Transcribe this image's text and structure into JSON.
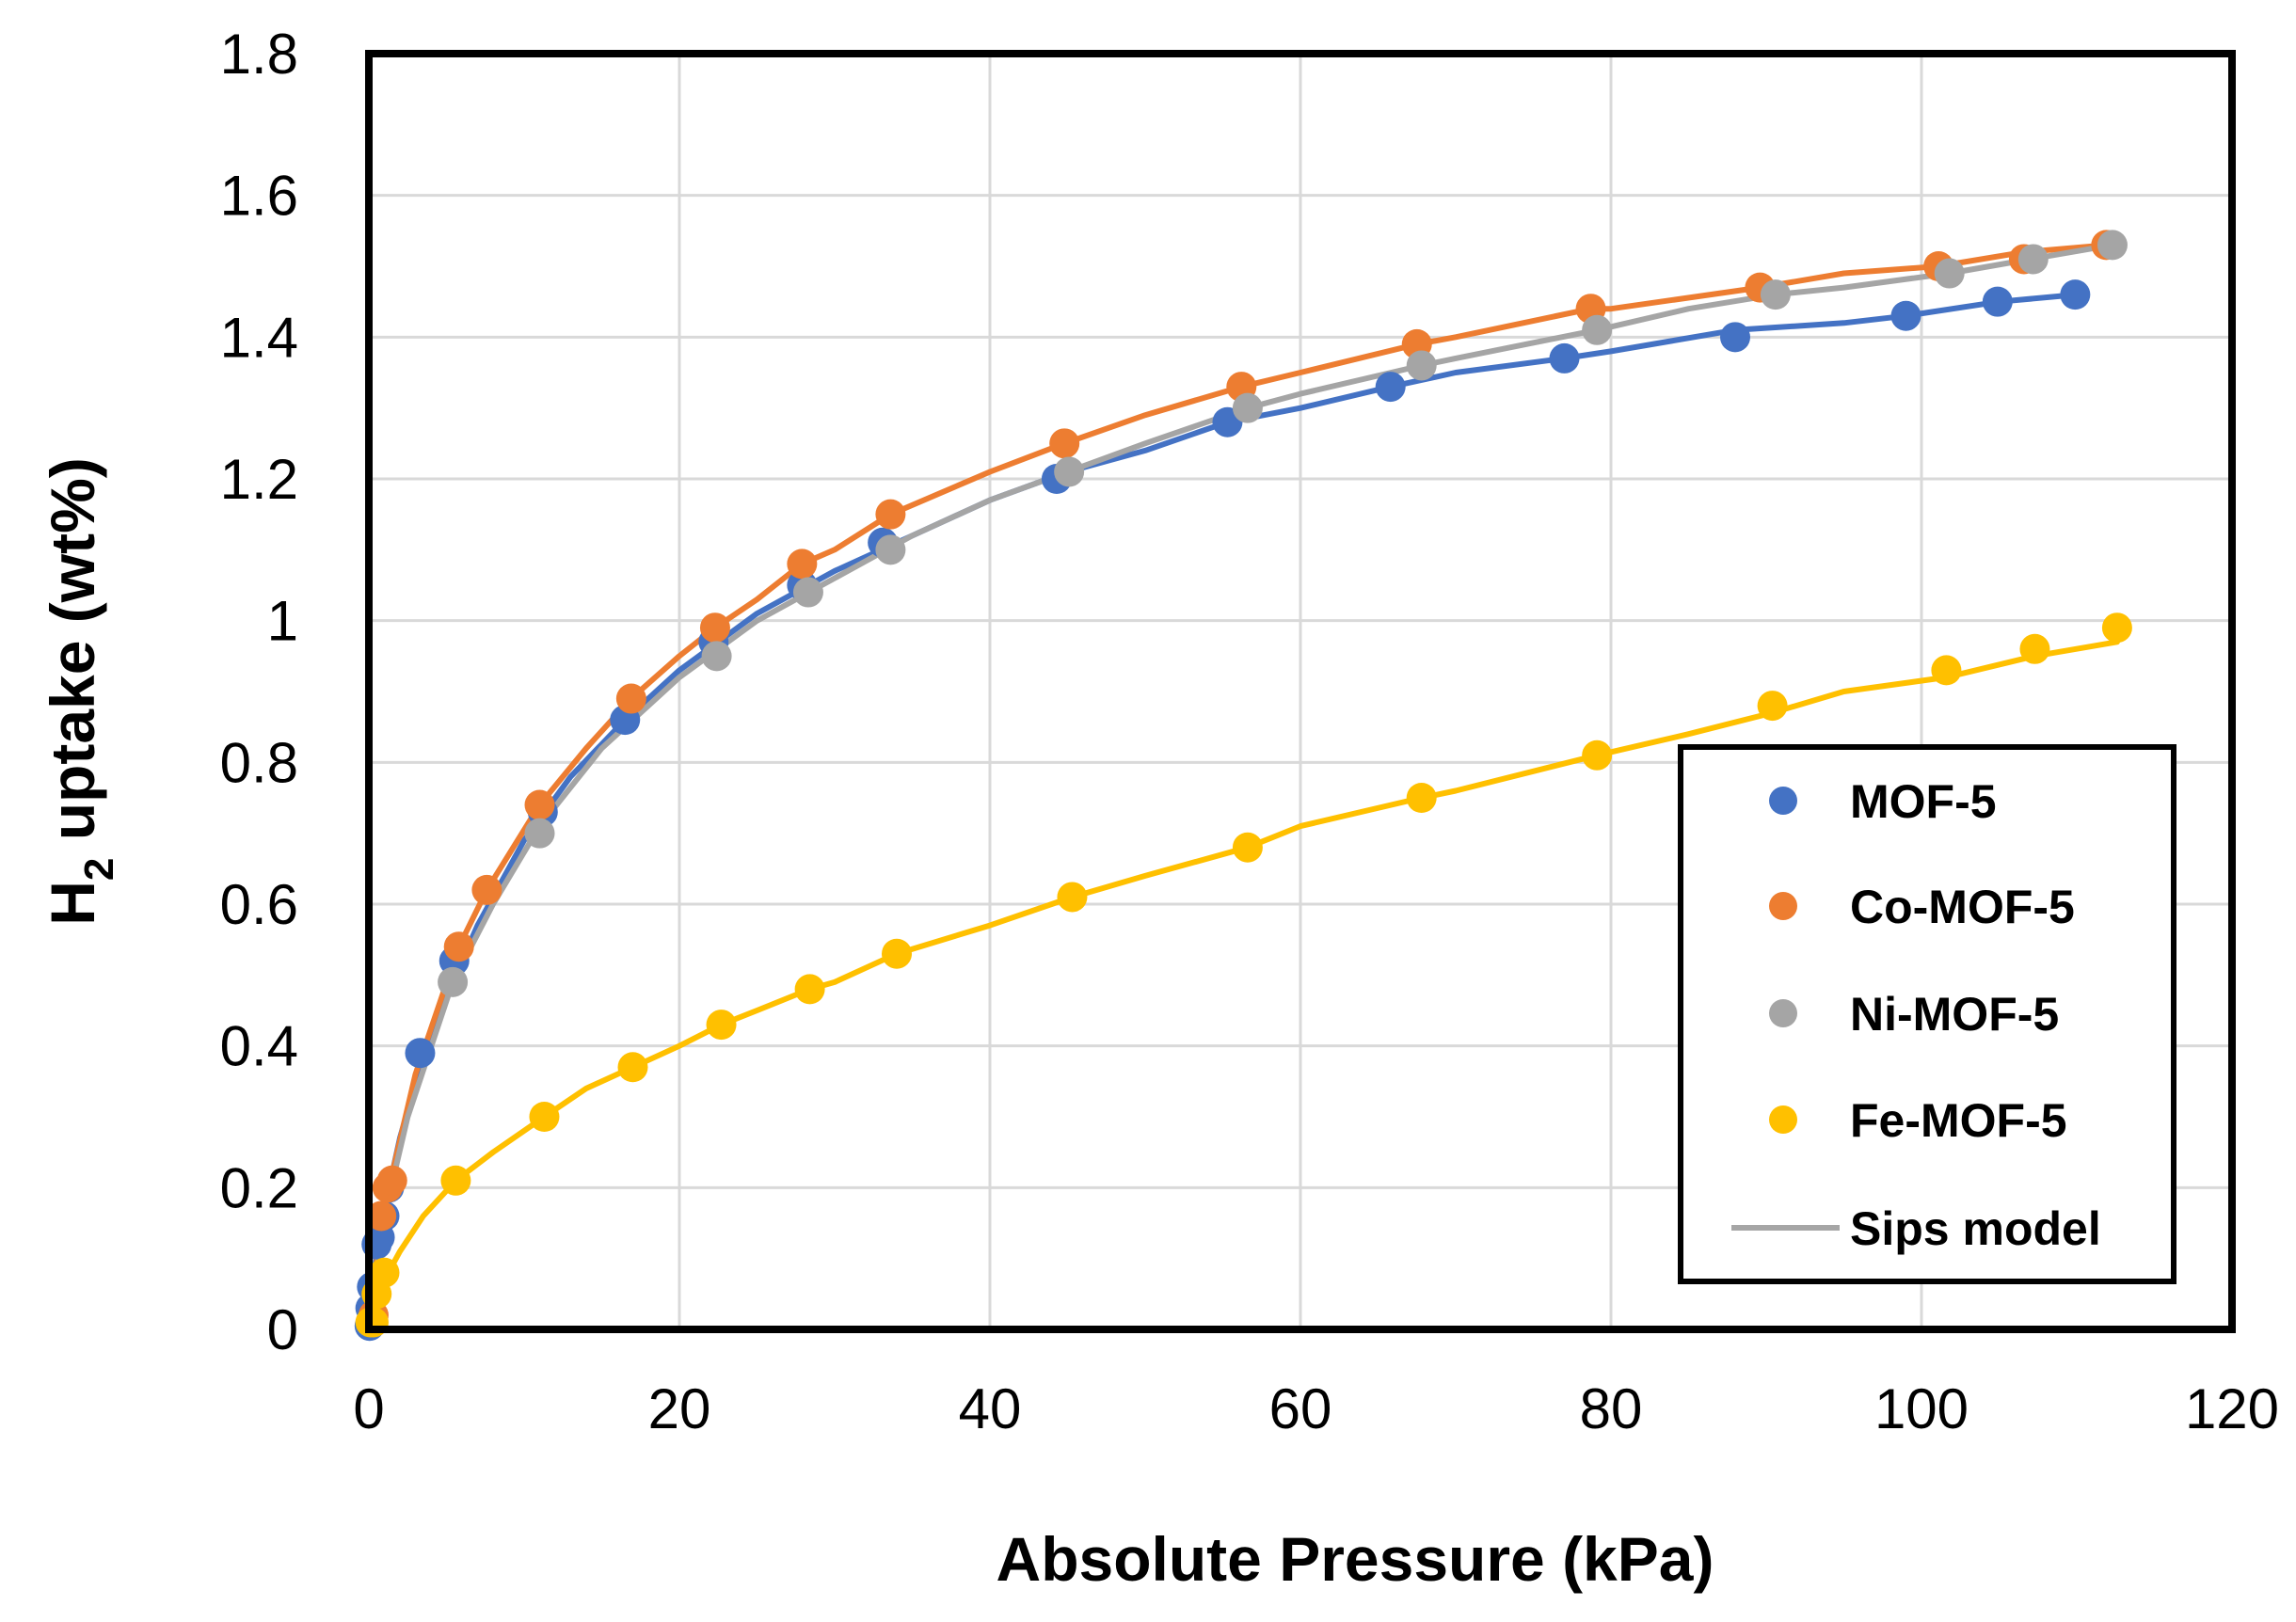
{
  "chart_data": {
    "type": "scatter",
    "title": "",
    "xlabel": "Absolute Pressure (kPa)",
    "ylabel": {
      "main": "H",
      "subscript": "2",
      "rest": " uptake (wt%)"
    },
    "xlim": [
      0,
      120
    ],
    "ylim": [
      0,
      1.8
    ],
    "xticks": [
      0,
      20,
      40,
      60,
      80,
      100,
      120
    ],
    "yticks": [
      0,
      0.2,
      0.4,
      0.6,
      0.8,
      1,
      1.2,
      1.4,
      1.6,
      1.8
    ],
    "ytick_labels": [
      "0",
      "0.2",
      "0.4",
      "0.6",
      "0.8",
      "1",
      "1.2",
      "1.4",
      "1.6",
      "1.8"
    ],
    "grid": true,
    "legend_position": "right",
    "fit_label": "Sips model",
    "fit_color": "#a6a6a6",
    "series": [
      {
        "name": "MOF-5",
        "color": "#4472c4",
        "points": [
          [
            0.05,
            0.005
          ],
          [
            0.1,
            0.03
          ],
          [
            0.2,
            0.06
          ],
          [
            0.5,
            0.12
          ],
          [
            0.7,
            0.13
          ],
          [
            1.0,
            0.16
          ],
          [
            1.3,
            0.2
          ],
          [
            3.3,
            0.39
          ],
          [
            5.5,
            0.52
          ],
          [
            11.2,
            0.73
          ],
          [
            16.5,
            0.86
          ],
          [
            22.2,
            0.97
          ],
          [
            27.9,
            1.05
          ],
          [
            33.1,
            1.11
          ],
          [
            44.3,
            1.2
          ],
          [
            55.3,
            1.28
          ],
          [
            65.8,
            1.33
          ],
          [
            77.0,
            1.37
          ],
          [
            88.0,
            1.4
          ],
          [
            99.0,
            1.43
          ],
          [
            104.9,
            1.45
          ],
          [
            109.9,
            1.46
          ]
        ],
        "fit": [
          [
            0,
            0
          ],
          [
            0.5,
            0.11
          ],
          [
            1,
            0.17
          ],
          [
            2,
            0.27
          ],
          [
            3.3,
            0.37
          ],
          [
            5,
            0.47
          ],
          [
            7,
            0.57
          ],
          [
            10,
            0.69
          ],
          [
            13,
            0.78
          ],
          [
            16.5,
            0.86
          ],
          [
            20,
            0.93
          ],
          [
            25,
            1.01
          ],
          [
            30,
            1.07
          ],
          [
            35,
            1.12
          ],
          [
            40,
            1.17
          ],
          [
            45,
            1.21
          ],
          [
            50,
            1.24
          ],
          [
            55.3,
            1.28
          ],
          [
            60,
            1.3
          ],
          [
            65.8,
            1.33
          ],
          [
            70,
            1.35
          ],
          [
            77,
            1.37
          ],
          [
            80,
            1.38
          ],
          [
            88,
            1.41
          ],
          [
            95,
            1.42
          ],
          [
            99,
            1.43
          ],
          [
            105,
            1.45
          ],
          [
            110,
            1.46
          ]
        ]
      },
      {
        "name": "Co-MOF-5",
        "color": "#ed7d31",
        "points": [
          [
            0.3,
            0.02
          ],
          [
            0.8,
            0.16
          ],
          [
            1.2,
            0.2
          ],
          [
            1.5,
            0.21
          ],
          [
            5.8,
            0.54
          ],
          [
            7.6,
            0.62
          ],
          [
            11.0,
            0.74
          ],
          [
            16.9,
            0.89
          ],
          [
            22.3,
            0.99
          ],
          [
            27.9,
            1.08
          ],
          [
            33.6,
            1.15
          ],
          [
            44.8,
            1.25
          ],
          [
            56.2,
            1.33
          ],
          [
            67.5,
            1.39
          ],
          [
            78.7,
            1.44
          ],
          [
            89.6,
            1.47
          ],
          [
            101.1,
            1.5
          ],
          [
            106.6,
            1.51
          ],
          [
            111.9,
            1.53
          ]
        ],
        "fit": [
          [
            0,
            0
          ],
          [
            0.8,
            0.15
          ],
          [
            1.5,
            0.22
          ],
          [
            3,
            0.36
          ],
          [
            5.8,
            0.54
          ],
          [
            7.6,
            0.62
          ],
          [
            11,
            0.74
          ],
          [
            14,
            0.82
          ],
          [
            16.9,
            0.89
          ],
          [
            20,
            0.95
          ],
          [
            22.3,
            0.99
          ],
          [
            25,
            1.03
          ],
          [
            27.9,
            1.08
          ],
          [
            30,
            1.1
          ],
          [
            33.6,
            1.15
          ],
          [
            40,
            1.21
          ],
          [
            44.8,
            1.25
          ],
          [
            50,
            1.29
          ],
          [
            56.2,
            1.33
          ],
          [
            60,
            1.35
          ],
          [
            67.5,
            1.39
          ],
          [
            70,
            1.4
          ],
          [
            78.7,
            1.44
          ],
          [
            80,
            1.44
          ],
          [
            89.6,
            1.47
          ],
          [
            95,
            1.49
          ],
          [
            101.1,
            1.5
          ],
          [
            106.6,
            1.52
          ],
          [
            112,
            1.53
          ]
        ]
      },
      {
        "name": "Ni-MOF-5",
        "color": "#a5a5a5",
        "points": [
          [
            5.4,
            0.49
          ],
          [
            11.0,
            0.7
          ],
          [
            22.4,
            0.95
          ],
          [
            28.3,
            1.04
          ],
          [
            33.6,
            1.1
          ],
          [
            45.1,
            1.21
          ],
          [
            56.6,
            1.3
          ],
          [
            67.8,
            1.36
          ],
          [
            79.1,
            1.41
          ],
          [
            90.6,
            1.46
          ],
          [
            101.8,
            1.49
          ],
          [
            107.2,
            1.51
          ],
          [
            112.3,
            1.53
          ]
        ],
        "fit": [
          [
            0,
            0
          ],
          [
            1,
            0.16
          ],
          [
            2.5,
            0.3
          ],
          [
            5.4,
            0.49
          ],
          [
            8,
            0.6
          ],
          [
            11,
            0.71
          ],
          [
            15,
            0.82
          ],
          [
            20,
            0.92
          ],
          [
            25,
            1
          ],
          [
            30,
            1.06
          ],
          [
            35,
            1.12
          ],
          [
            40,
            1.17
          ],
          [
            45,
            1.21
          ],
          [
            50,
            1.25
          ],
          [
            56.6,
            1.3
          ],
          [
            60,
            1.32
          ],
          [
            67.8,
            1.36
          ],
          [
            70,
            1.37
          ],
          [
            79.1,
            1.41
          ],
          [
            85,
            1.44
          ],
          [
            90.6,
            1.46
          ],
          [
            95,
            1.47
          ],
          [
            101.8,
            1.49
          ],
          [
            107,
            1.51
          ],
          [
            112.3,
            1.53
          ]
        ]
      },
      {
        "name": "Fe-MOF-5",
        "color": "#ffc000",
        "points": [
          [
            0.1,
            0.01
          ],
          [
            0.3,
            0.01
          ],
          [
            0.5,
            0.05
          ],
          [
            1.0,
            0.08
          ],
          [
            5.6,
            0.21
          ],
          [
            11.3,
            0.3
          ],
          [
            17.0,
            0.37
          ],
          [
            22.7,
            0.43
          ],
          [
            28.4,
            0.48
          ],
          [
            34.0,
            0.53
          ],
          [
            45.3,
            0.61
          ],
          [
            56.6,
            0.68
          ],
          [
            67.8,
            0.75
          ],
          [
            79.1,
            0.81
          ],
          [
            90.4,
            0.88
          ],
          [
            101.6,
            0.93
          ],
          [
            107.3,
            0.96
          ],
          [
            112.6,
            0.99
          ]
        ],
        "fit": [
          [
            0,
            0
          ],
          [
            0.5,
            0.04
          ],
          [
            1,
            0.07
          ],
          [
            2,
            0.11
          ],
          [
            3.5,
            0.16
          ],
          [
            5.6,
            0.21
          ],
          [
            8,
            0.25
          ],
          [
            11.3,
            0.3
          ],
          [
            14,
            0.34
          ],
          [
            17,
            0.37
          ],
          [
            20,
            0.4
          ],
          [
            22.7,
            0.43
          ],
          [
            25,
            0.45
          ],
          [
            28.4,
            0.48
          ],
          [
            30,
            0.49
          ],
          [
            34,
            0.53
          ],
          [
            40,
            0.57
          ],
          [
            45.3,
            0.61
          ],
          [
            50,
            0.64
          ],
          [
            56.6,
            0.68
          ],
          [
            60,
            0.71
          ],
          [
            67.8,
            0.75
          ],
          [
            70,
            0.76
          ],
          [
            79.1,
            0.81
          ],
          [
            85,
            0.84
          ],
          [
            90.4,
            0.87
          ],
          [
            95,
            0.9
          ],
          [
            101.6,
            0.92
          ],
          [
            107.3,
            0.95
          ],
          [
            112.6,
            0.97
          ]
        ]
      }
    ]
  }
}
